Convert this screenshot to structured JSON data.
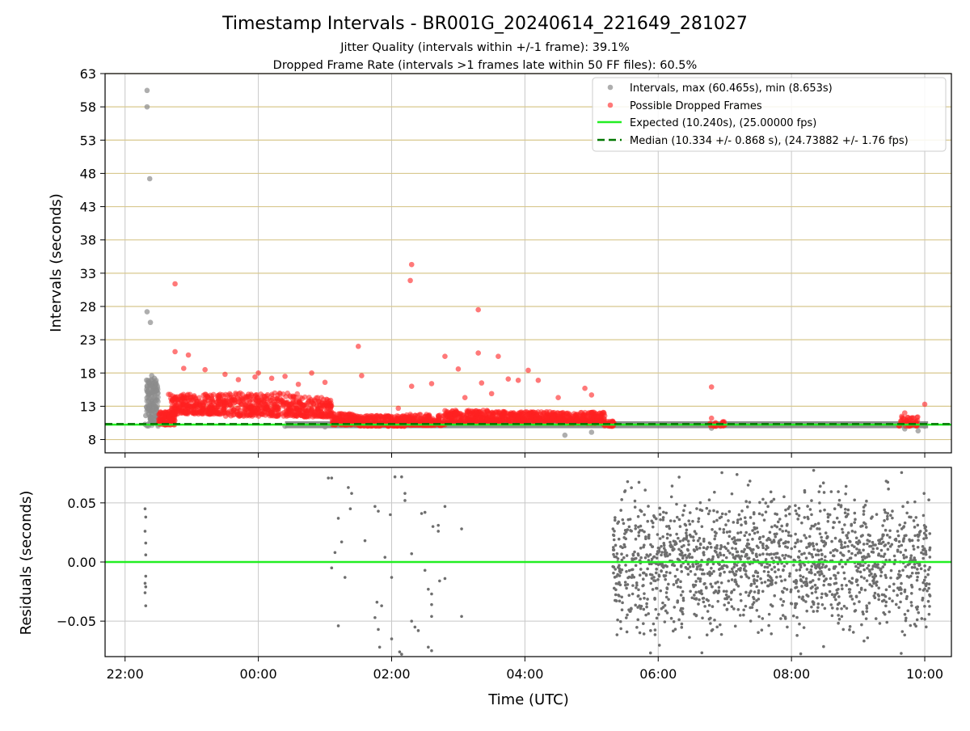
{
  "title": "Timestamp Intervals - BR001G_20240614_221649_281027",
  "subtitle_1": "Jitter Quality (intervals within +/-1 frame): 39.1%",
  "subtitle_2": "Dropped Frame Rate (intervals >1 frames late within 50 FF files): 60.5%",
  "colors": {
    "intervals": "#8c8c8c",
    "dropped": "#ff2020",
    "expected": "#22ee22",
    "median": "#007700",
    "residuals": "#6e6e6e",
    "hgrid_top": "#d8c88e",
    "grid": "#c8c8c8"
  },
  "chart_data": [
    {
      "type": "scatter",
      "ylabel": "Intervals (seconds)",
      "xlabel": "",
      "x_unit": "hours since 22:00 UTC",
      "xlim": [
        -0.3,
        12.4
      ],
      "ylim": [
        6,
        63
      ],
      "yticks": [
        8,
        13,
        18,
        23,
        28,
        33,
        38,
        43,
        48,
        53,
        58,
        63
      ],
      "xticks": [
        0,
        2,
        4,
        6,
        8,
        10,
        12
      ],
      "xtick_labels": [
        "22:00",
        "00:00",
        "02:00",
        "04:00",
        "06:00",
        "08:00",
        "10:00"
      ],
      "legend_position": "upper-right",
      "legend": [
        "Intervals, max (60.465s), min (8.653s)",
        "Possible Dropped Frames",
        "Expected (10.240s), (25.00000 fps)",
        "Median (10.334 +/- 0.868 s), (24.73882 +/- 1.76 fps)"
      ],
      "expected_value": 10.24,
      "median_value": 10.334,
      "series": [
        {
          "name": "Intervals, max (60.465s), min (8.653s)",
          "points": [
            [
              0.33,
              60.465
            ],
            [
              0.33,
              58.0
            ],
            [
              0.37,
              47.2
            ],
            [
              0.33,
              27.2
            ],
            [
              0.38,
              25.6
            ],
            [
              0.4,
              17.6
            ],
            [
              0.44,
              17.2
            ],
            [
              0.46,
              16.3
            ],
            [
              0.42,
              15.1
            ],
            [
              0.45,
              14.3
            ],
            [
              0.4,
              13.8
            ],
            [
              0.44,
              13.0
            ],
            [
              0.36,
              12.6
            ],
            [
              0.41,
              12.3
            ],
            [
              0.31,
              11.6
            ],
            [
              0.38,
              11.1
            ],
            [
              0.3,
              10.3
            ],
            [
              0.43,
              10.6
            ],
            [
              2.4,
              10.0
            ],
            [
              3.0,
              9.9
            ],
            [
              3.6,
              10.1
            ],
            [
              6.2,
              10.2
            ],
            [
              6.6,
              8.65
            ],
            [
              7.0,
              11.3
            ],
            [
              7.0,
              9.1
            ],
            [
              8.6,
              10.2
            ],
            [
              8.8,
              9.7
            ],
            [
              11.7,
              9.6
            ],
            [
              11.9,
              9.3
            ],
            [
              12.0,
              10.0
            ]
          ]
        },
        {
          "name": "Possible Dropped Frames",
          "points": [
            [
              0.75,
              31.4
            ],
            [
              0.75,
              21.2
            ],
            [
              0.95,
              20.7
            ],
            [
              0.88,
              18.7
            ],
            [
              1.2,
              18.5
            ],
            [
              1.5,
              17.8
            ],
            [
              1.7,
              17.0
            ],
            [
              1.95,
              17.4
            ],
            [
              2.0,
              18.0
            ],
            [
              2.2,
              17.2
            ],
            [
              2.4,
              17.5
            ],
            [
              2.6,
              16.3
            ],
            [
              2.8,
              18.0
            ],
            [
              3.0,
              16.6
            ],
            [
              3.5,
              22.0
            ],
            [
              3.55,
              17.6
            ],
            [
              4.1,
              12.7
            ],
            [
              4.3,
              34.3
            ],
            [
              4.28,
              31.9
            ],
            [
              4.3,
              16.0
            ],
            [
              4.6,
              16.4
            ],
            [
              4.8,
              20.5
            ],
            [
              5.0,
              18.6
            ],
            [
              5.1,
              14.3
            ],
            [
              5.3,
              27.5
            ],
            [
              5.3,
              21.0
            ],
            [
              5.35,
              16.5
            ],
            [
              5.6,
              20.5
            ],
            [
              5.5,
              14.9
            ],
            [
              5.75,
              17.1
            ],
            [
              5.9,
              16.9
            ],
            [
              6.05,
              18.4
            ],
            [
              6.2,
              16.9
            ],
            [
              6.5,
              14.3
            ],
            [
              6.9,
              15.7
            ],
            [
              7.0,
              14.7
            ],
            [
              8.8,
              15.9
            ],
            [
              8.8,
              11.2
            ],
            [
              11.7,
              12.0
            ],
            [
              12.0,
              13.3
            ]
          ]
        }
      ]
    },
    {
      "type": "scatter",
      "ylabel": "Residuals (seconds)",
      "xlabel": "Time (UTC)",
      "x_unit": "hours since 22:00 UTC",
      "xlim": [
        -0.3,
        12.4
      ],
      "ylim": [
        -0.08,
        0.08
      ],
      "yticks": [
        -0.05,
        0.0,
        0.05
      ],
      "ytick_labels": [
        "−0.05",
        "0.00",
        "0.05"
      ],
      "xticks": [
        0,
        2,
        4,
        6,
        8,
        10,
        12
      ],
      "xtick_labels": [
        "22:00",
        "00:00",
        "02:00",
        "04:00",
        "06:00",
        "08:00",
        "10:00"
      ],
      "zero_line": 0.0,
      "series": [
        {
          "name": "",
          "points": [
            [
              0.3,
              0.045
            ],
            [
              0.31,
              0.038
            ],
            [
              0.3,
              0.026
            ],
            [
              0.31,
              0.016
            ],
            [
              0.31,
              0.006
            ],
            [
              0.31,
              -0.012
            ],
            [
              0.3,
              -0.018
            ],
            [
              0.31,
              -0.021
            ],
            [
              0.3,
              -0.026
            ],
            [
              0.31,
              -0.037
            ],
            [
              3.05,
              0.071
            ],
            [
              3.1,
              0.071
            ],
            [
              3.2,
              0.037
            ],
            [
              3.25,
              0.017
            ],
            [
              3.15,
              0.008
            ],
            [
              3.1,
              -0.005
            ],
            [
              3.3,
              -0.013
            ],
            [
              3.35,
              0.063
            ],
            [
              3.4,
              0.058
            ],
            [
              3.38,
              0.045
            ],
            [
              3.6,
              0.018
            ],
            [
              3.75,
              0.047
            ],
            [
              3.8,
              0.043
            ],
            [
              3.78,
              -0.034
            ],
            [
              3.85,
              -0.037
            ],
            [
              3.75,
              -0.047
            ],
            [
              3.8,
              -0.057
            ],
            [
              3.82,
              -0.072
            ],
            [
              3.9,
              0.004
            ],
            [
              4.0,
              -0.013
            ],
            [
              4.0,
              -0.065
            ],
            [
              4.05,
              0.072
            ],
            [
              4.15,
              0.072
            ],
            [
              4.12,
              -0.076
            ],
            [
              4.15,
              -0.078
            ],
            [
              4.2,
              0.052
            ],
            [
              4.2,
              0.058
            ],
            [
              4.3,
              0.007
            ],
            [
              4.35,
              -0.055
            ],
            [
              4.4,
              -0.058
            ],
            [
              4.45,
              0.041
            ],
            [
              4.5,
              0.042
            ],
            [
              4.5,
              -0.007
            ],
            [
              4.55,
              -0.023
            ],
            [
              4.6,
              -0.027
            ],
            [
              4.3,
              -0.05
            ],
            [
              4.6,
              -0.036
            ],
            [
              4.6,
              -0.046
            ],
            [
              4.6,
              -0.075
            ],
            [
              4.7,
              0.026
            ],
            [
              4.7,
              0.031
            ],
            [
              4.8,
              0.047
            ],
            [
              4.72,
              -0.016
            ],
            [
              4.8,
              -0.014
            ],
            [
              5.05,
              0.028
            ],
            [
              5.05,
              -0.046
            ],
            [
              4.55,
              -0.072
            ],
            [
              3.98,
              0.04
            ],
            [
              4.62,
              0.03
            ],
            [
              3.2,
              -0.054
            ]
          ]
        }
      ]
    }
  ]
}
